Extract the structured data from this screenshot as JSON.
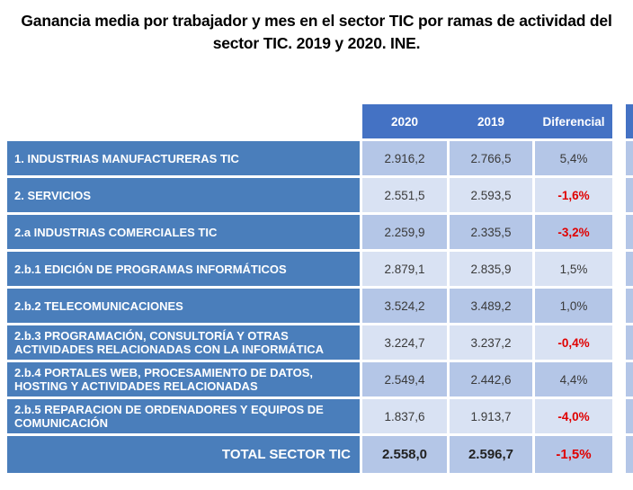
{
  "title": {
    "line1": "Ganancia media por trabajador y mes en el sector TIC por ramas de actividad del",
    "line2": "sector TIC. 2019 y 2020. INE."
  },
  "table": {
    "columns": [
      "2020",
      "2019",
      "Diferencial"
    ],
    "rows": [
      {
        "label": "1. INDUSTRIAS MANUFACTURERAS TIC",
        "v2020": "2.916,2",
        "v2019": "2.766,5",
        "dif": "5,4%",
        "negative": false
      },
      {
        "label": "2. SERVICIOS",
        "v2020": "2.551,5",
        "v2019": "2.593,5",
        "dif": "-1,6%",
        "negative": true
      },
      {
        "label": "2.a INDUSTRIAS COMERCIALES TIC",
        "v2020": "2.259,9",
        "v2019": "2.335,5",
        "dif": "-3,2%",
        "negative": true
      },
      {
        "label": "2.b.1 EDICIÓN DE PROGRAMAS INFORMÁTICOS",
        "v2020": "2.879,1",
        "v2019": "2.835,9",
        "dif": "1,5%",
        "negative": false
      },
      {
        "label": "2.b.2 TELECOMUNICACIONES",
        "v2020": "3.524,2",
        "v2019": "3.489,2",
        "dif": "1,0%",
        "negative": false
      },
      {
        "label": "2.b.3 PROGRAMACIÓN, CONSULTORÍA Y OTRAS ACTIVIDADES RELACIONADAS CON LA INFORMÁTICA",
        "v2020": "3.224,7",
        "v2019": "3.237,2",
        "dif": "-0,4%",
        "negative": true
      },
      {
        "label": "2.b.4 PORTALES WEB, PROCESAMIENTO DE DATOS, HOSTING Y ACTIVIDADES RELACIONADAS",
        "v2020": "2.549,4",
        "v2019": "2.442,6",
        "dif": "4,4%",
        "negative": false
      },
      {
        "label": "2.b.5 REPARACION DE ORDENADORES Y EQUIPOS DE COMUNICACIÓN",
        "v2020": "1.837,6",
        "v2019": "1.913,7",
        "dif": "-4,0%",
        "negative": true
      }
    ],
    "total": {
      "label": "TOTAL SECTOR TIC",
      "v2020": "2.558,0",
      "v2019": "2.596,7",
      "dif": "-1,5%",
      "negative": true
    }
  },
  "colors": {
    "header_blue": "#4472C4",
    "label_blue": "#4A7EBB",
    "band_dark": "#B4C6E7",
    "band_light": "#D9E2F3",
    "negative_red": "#E00000",
    "text_dark": "#3A3A3A"
  },
  "chart_data": {
    "type": "table",
    "title": "Ganancia media por trabajador y mes en el sector TIC por ramas de actividad del sector TIC. 2019 y 2020. INE.",
    "columns": [
      "2020",
      "2019",
      "Diferencial"
    ],
    "rows": [
      {
        "label": "1. INDUSTRIAS MANUFACTURERAS TIC",
        "y2020": 2916.2,
        "y2019": 2766.5,
        "diferencial_pct": 5.4
      },
      {
        "label": "2. SERVICIOS",
        "y2020": 2551.5,
        "y2019": 2593.5,
        "diferencial_pct": -1.6
      },
      {
        "label": "2.a INDUSTRIAS COMERCIALES TIC",
        "y2020": 2259.9,
        "y2019": 2335.5,
        "diferencial_pct": -3.2
      },
      {
        "label": "2.b.1 EDICIÓN DE PROGRAMAS INFORMÁTICOS",
        "y2020": 2879.1,
        "y2019": 2835.9,
        "diferencial_pct": 1.5
      },
      {
        "label": "2.b.2 TELECOMUNICACIONES",
        "y2020": 3524.2,
        "y2019": 3489.2,
        "diferencial_pct": 1.0
      },
      {
        "label": "2.b.3 PROGRAMACIÓN, CONSULTORÍA Y OTRAS ACTIVIDADES RELACIONADAS CON LA INFORMÁTICA",
        "y2020": 3224.7,
        "y2019": 3237.2,
        "diferencial_pct": -0.4
      },
      {
        "label": "2.b.4 PORTALES WEB, PROCESAMIENTO DE DATOS, HOSTING Y ACTIVIDADES RELACIONADAS",
        "y2020": 2549.4,
        "y2019": 2442.6,
        "diferencial_pct": 4.4
      },
      {
        "label": "2.b.5 REPARACION DE ORDENADORES Y EQUIPOS DE COMUNICACIÓN",
        "y2020": 1837.6,
        "y2019": 1913.7,
        "diferencial_pct": -4.0
      },
      {
        "label": "TOTAL SECTOR TIC",
        "y2020": 2558.0,
        "y2019": 2596.7,
        "diferencial_pct": -1.5
      }
    ]
  }
}
